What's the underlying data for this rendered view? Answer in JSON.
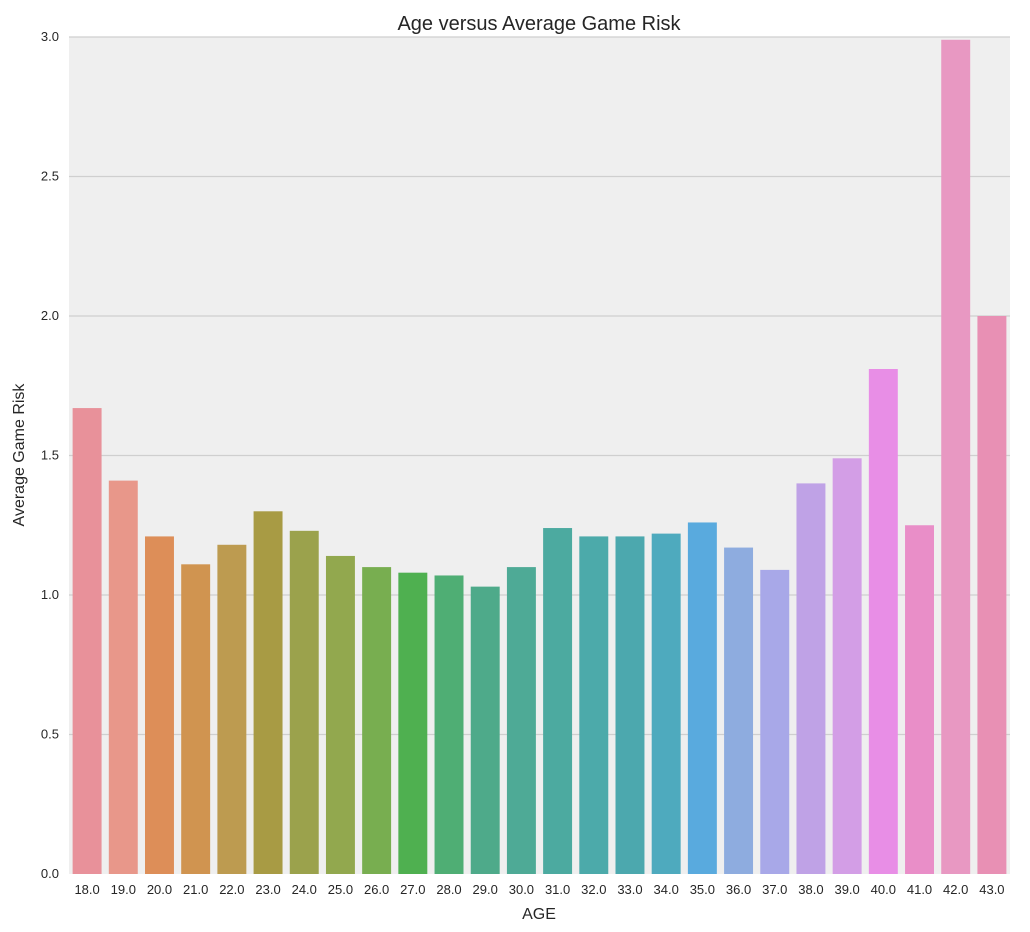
{
  "chart_data": {
    "type": "bar",
    "title": "Age versus Average Game Risk",
    "xlabel": "AGE",
    "ylabel": "Average Game Risk",
    "ylim": [
      0,
      3.0
    ],
    "yticks": [
      "0.0",
      "0.5",
      "1.0",
      "1.5",
      "2.0",
      "2.5",
      "3.0"
    ],
    "grid": true,
    "categories": [
      "18.0",
      "19.0",
      "20.0",
      "21.0",
      "22.0",
      "23.0",
      "24.0",
      "25.0",
      "26.0",
      "27.0",
      "28.0",
      "29.0",
      "30.0",
      "31.0",
      "32.0",
      "33.0",
      "34.0",
      "35.0",
      "36.0",
      "37.0",
      "38.0",
      "39.0",
      "40.0",
      "41.0",
      "42.0",
      "43.0"
    ],
    "values": [
      1.67,
      1.41,
      1.21,
      1.11,
      1.18,
      1.3,
      1.23,
      1.14,
      1.1,
      1.08,
      1.07,
      1.03,
      1.1,
      1.24,
      1.21,
      1.21,
      1.22,
      1.26,
      1.17,
      1.09,
      1.4,
      1.49,
      1.81,
      1.25,
      2.99,
      2.0
    ],
    "colors": [
      "#e8919a",
      "#e8978a",
      "#dd8e58",
      "#d09450",
      "#bd9b50",
      "#a89b44",
      "#9ba24c",
      "#92a84e",
      "#78ae50",
      "#4fb050",
      "#4fae74",
      "#4eaa8a",
      "#4eaa96",
      "#4caaa0",
      "#4caaaa",
      "#4ca8ae",
      "#4eaabe",
      "#59aade",
      "#8eacdf",
      "#a8a8e8",
      "#bfa2e6",
      "#d39ee6",
      "#e88ee6",
      "#e98ec8",
      "#e898c2",
      "#e890b4"
    ]
  }
}
